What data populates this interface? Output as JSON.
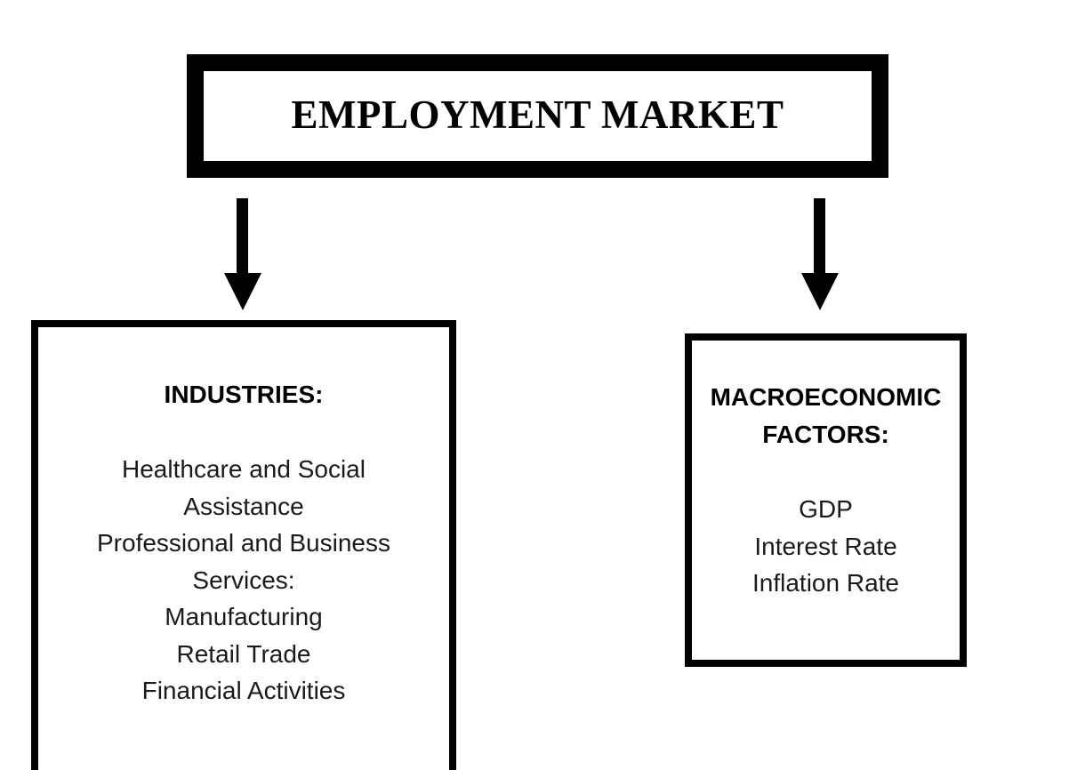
{
  "diagram": {
    "title": "EMPLOYMENT MARKET",
    "industries": {
      "heading": "INDUSTRIES:",
      "items": [
        "Healthcare and Social",
        "Assistance",
        "Professional and Business",
        "Services:",
        "Manufacturing",
        "Retail Trade",
        "Financial Activities"
      ]
    },
    "macro": {
      "heading_line1": "MACROECONOMIC",
      "heading_line2": "FACTORS:",
      "items": [
        "GDP",
        "Interest Rate",
        "Inflation Rate"
      ]
    },
    "colors": {
      "border": "#000000",
      "background": "#ffffff",
      "text": "#1a1a1a"
    }
  }
}
